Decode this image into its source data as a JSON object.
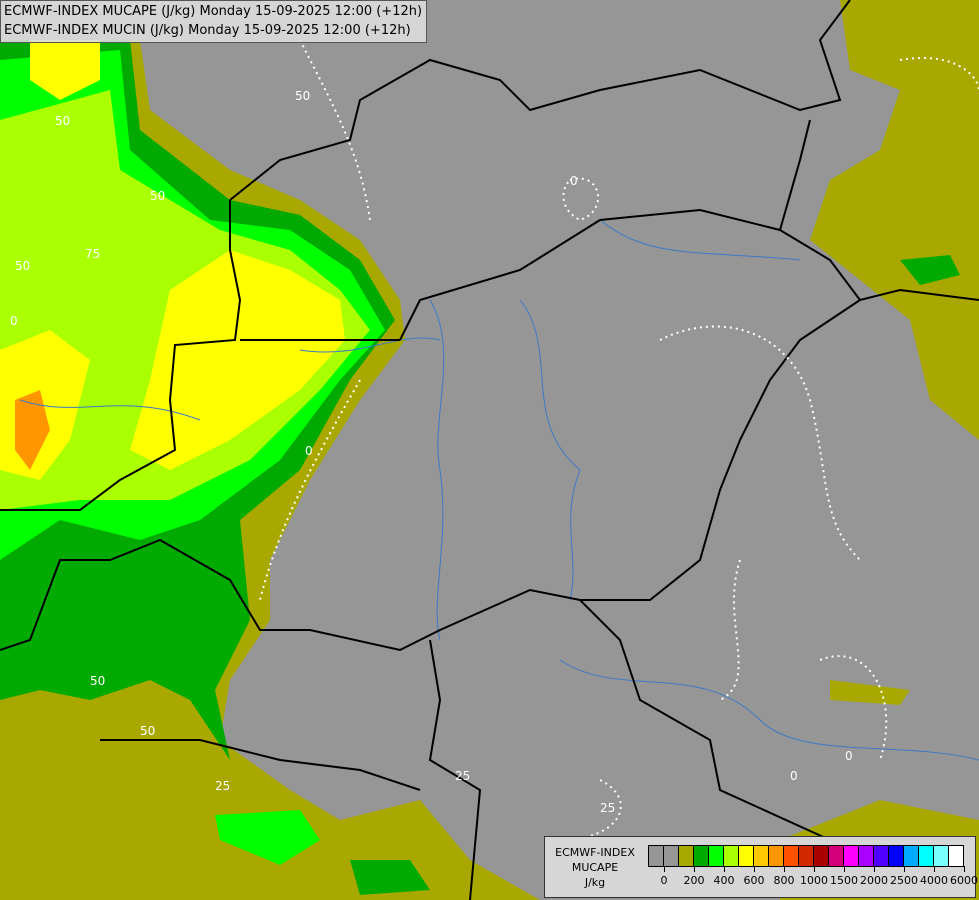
{
  "titles": [
    "ECMWF-INDEX MUCAPE (J/kg) Monday 15-09-2025 12:00 (+12h)",
    "ECMWF-INDEX MUCIN (J/kg) Monday 15-09-2025 12:00 (+12h)"
  ],
  "legend": {
    "line1": "ECMWF-INDEX",
    "line2": "MUCAPE",
    "unit": "J/kg",
    "colors": [
      "#969696",
      "#969696",
      "#a8a800",
      "#00aa00",
      "#00ff00",
      "#aaff00",
      "#ffff00",
      "#ffc800",
      "#ff9600",
      "#ff5000",
      "#d22800",
      "#aa0000",
      "#d2007a",
      "#ff00ff",
      "#aa00ff",
      "#5000ff",
      "#0000ff",
      "#00aaff",
      "#00ffff",
      "#78ffff",
      "#ffffff"
    ],
    "tick_labels": [
      "0",
      "200",
      "400",
      "600",
      "800",
      "1000",
      "1500",
      "2000",
      "2500",
      "4000",
      "6000"
    ]
  },
  "contour_labels": [
    "50",
    "75",
    "50",
    "50",
    "0",
    "25",
    "50",
    "0",
    "25",
    "50",
    "50",
    "0",
    "0",
    "0",
    "25"
  ],
  "map_colors": {
    "background": "#969696",
    "olive": "#a8a800",
    "green_dark": "#00aa00",
    "green": "#00ff00",
    "lime": "#aaff00",
    "yellow": "#ffff00",
    "orange": "#ffc800",
    "dark_orange": "#ff9600",
    "border": "#000000",
    "river": "#3c78c8"
  }
}
